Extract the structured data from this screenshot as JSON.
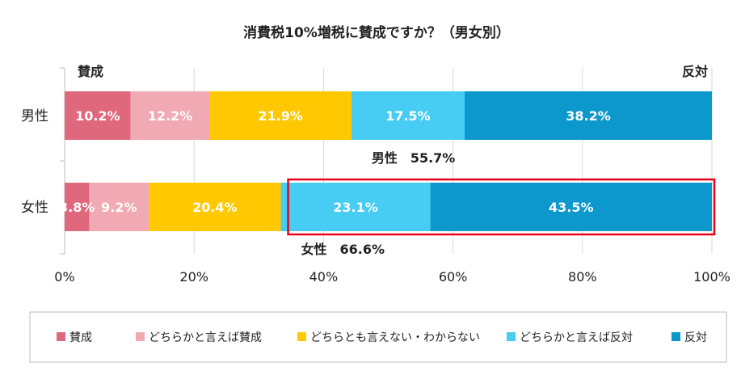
{
  "chart_data": {
    "type": "bar",
    "orientation": "horizontal",
    "stacked": true,
    "percent": true,
    "title": "消費税10%増税に賛成ですか？（男女別）",
    "left_end_label": "賛成",
    "right_end_label": "反対",
    "categories": [
      "男性",
      "女性"
    ],
    "series": [
      {
        "name": "賛成",
        "color": "#e0687d",
        "values": [
          10.2,
          3.8
        ],
        "labels": [
          "10.2%",
          "3.8%"
        ]
      },
      {
        "name": "どちらかと言えば賛成",
        "color": "#f1a9b4",
        "values": [
          12.2,
          9.2
        ],
        "labels": [
          "12.2%",
          "9.2%"
        ]
      },
      {
        "name": "どちらとも言えない・わからない",
        "color": "#ffc800",
        "values": [
          21.9,
          20.4
        ],
        "labels": [
          "21.9%",
          "20.4%"
        ]
      },
      {
        "name": "どちらかと言えば反対",
        "color": "#47ccf4",
        "values": [
          17.5,
          23.1
        ],
        "labels": [
          "17.5%",
          "23.1%"
        ]
      },
      {
        "name": "反対",
        "color": "#0c98cc",
        "values": [
          38.2,
          43.5
        ],
        "labels": [
          "38.2%",
          "43.5%"
        ]
      }
    ],
    "xlim": [
      0,
      100
    ],
    "xticks": [
      "0%",
      "20%",
      "40%",
      "60%",
      "80%",
      "100%"
    ],
    "grid": true,
    "legend_position": "bottom",
    "annotations": [
      {
        "category": "男性",
        "text": "男性　55.7%",
        "value": 55.7
      },
      {
        "category": "女性",
        "text": "女性　66.6%",
        "value": 66.6,
        "highlight_color": "#e8001c"
      }
    ]
  }
}
